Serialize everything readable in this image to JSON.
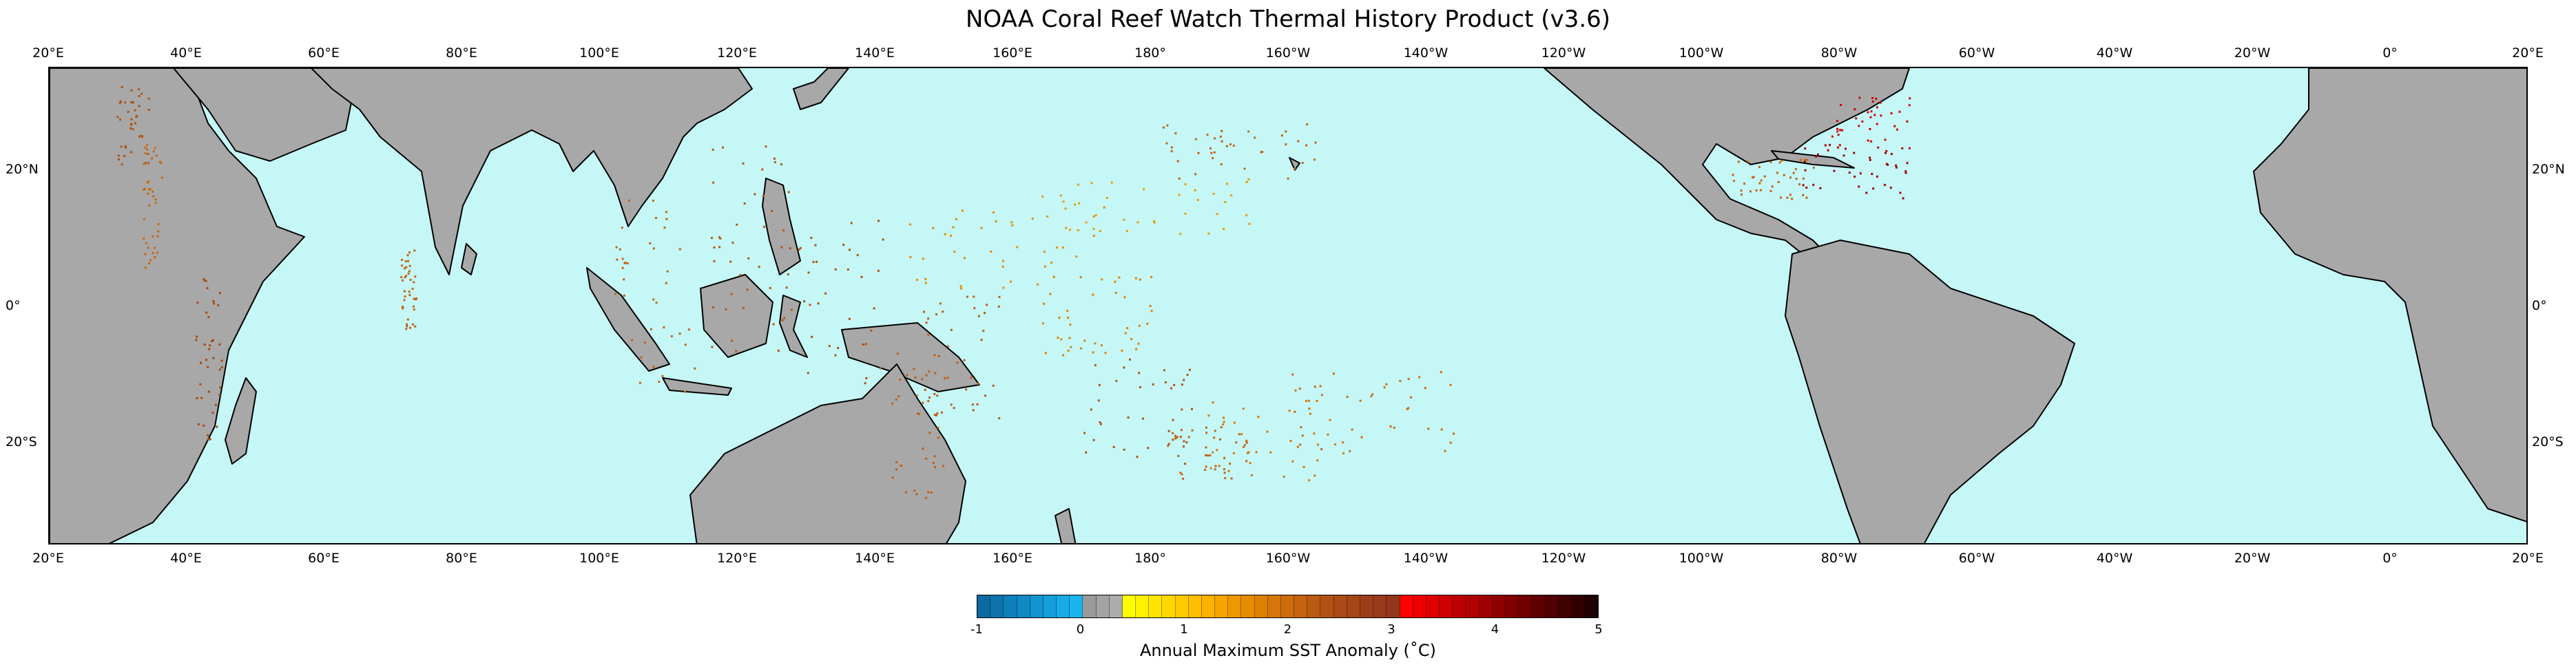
{
  "map": {
    "title": "NOAA Coral Reef Watch Thermal History Product (v3.6)",
    "projection": "equirectangular, Pacific-centered",
    "lon_range_deg": [
      20,
      380
    ],
    "lat_range_deg": [
      -35,
      35
    ],
    "ocean_color": "#c5f7f6",
    "land_color": "#a8a8a8",
    "coast_color": "#000000",
    "lon_ticks": [
      "20°E",
      "40°E",
      "60°E",
      "80°E",
      "100°E",
      "120°E",
      "140°E",
      "160°E",
      "180°",
      "160°W",
      "140°W",
      "120°W",
      "100°W",
      "80°W",
      "60°W",
      "40°W",
      "20°W",
      "0°",
      "20°E"
    ],
    "lat_ticks": [
      "20°N",
      "0°",
      "20°S"
    ]
  },
  "colorbar": {
    "label": "Annual Maximum SST Anomaly (˚C)",
    "tick_labels": [
      "-1",
      "0",
      "1",
      "2",
      "3",
      "4",
      "5"
    ],
    "range": [
      -1,
      5
    ],
    "colors": [
      "#0b6aa1",
      "#0d74ad",
      "#0e7fb9",
      "#1089c4",
      "#1294d0",
      "#149fdb",
      "#17aae6",
      "#1ab4ef",
      "#9a9a9a",
      "#a3a3a3",
      "#acacac",
      "#ffff00",
      "#fff200",
      "#ffe500",
      "#ffd800",
      "#ffcb00",
      "#ffbe00",
      "#ffb100",
      "#f5a400",
      "#ee9800",
      "#e68c00",
      "#de8000",
      "#d67608",
      "#cd6c0c",
      "#c46310",
      "#bb5a13",
      "#b25215",
      "#aa4b16",
      "#a34517",
      "#9c3f18",
      "#973a19",
      "#93361a",
      "#ff0000",
      "#ef0000",
      "#df0000",
      "#cf0000",
      "#bf0000",
      "#b00000",
      "#a00000",
      "#900000",
      "#800000",
      "#700000",
      "#600000",
      "#500000",
      "#400000",
      "#300000",
      "#200000"
    ]
  }
}
